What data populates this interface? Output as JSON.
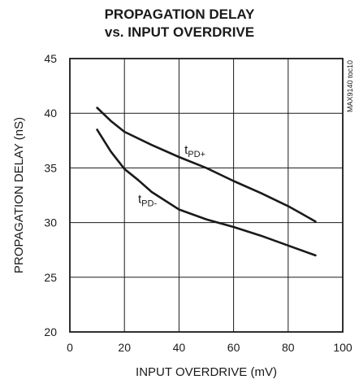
{
  "chart_data": {
    "type": "line",
    "title_line1": "PROPAGATION DELAY",
    "title_line2": "vs. INPUT OVERDRIVE",
    "xlabel": "INPUT OVERDRIVE (mV)",
    "ylabel": "PROPAGATION DELAY (nS)",
    "side_code": "MAX9140 toc10",
    "xlim": [
      0,
      100
    ],
    "ylim": [
      20,
      45
    ],
    "xticks": [
      0,
      20,
      40,
      60,
      80,
      100
    ],
    "yticks": [
      20,
      25,
      30,
      35,
      40,
      45
    ],
    "grid": true,
    "series": [
      {
        "label_main": "t",
        "label_sub": "PD+",
        "x": [
          10,
          15,
          20,
          30,
          40,
          50,
          60,
          70,
          80,
          85,
          90
        ],
        "y": [
          40.5,
          39.3,
          38.3,
          37.1,
          36.0,
          35.0,
          33.8,
          32.7,
          31.5,
          30.8,
          30.1
        ]
      },
      {
        "label_main": "t",
        "label_sub": "PD-",
        "x": [
          10,
          15,
          20,
          25,
          30,
          40,
          50,
          60,
          70,
          80,
          90
        ],
        "y": [
          38.5,
          36.5,
          34.9,
          33.9,
          32.8,
          31.2,
          30.3,
          29.6,
          28.8,
          27.9,
          27.0
        ]
      }
    ]
  }
}
